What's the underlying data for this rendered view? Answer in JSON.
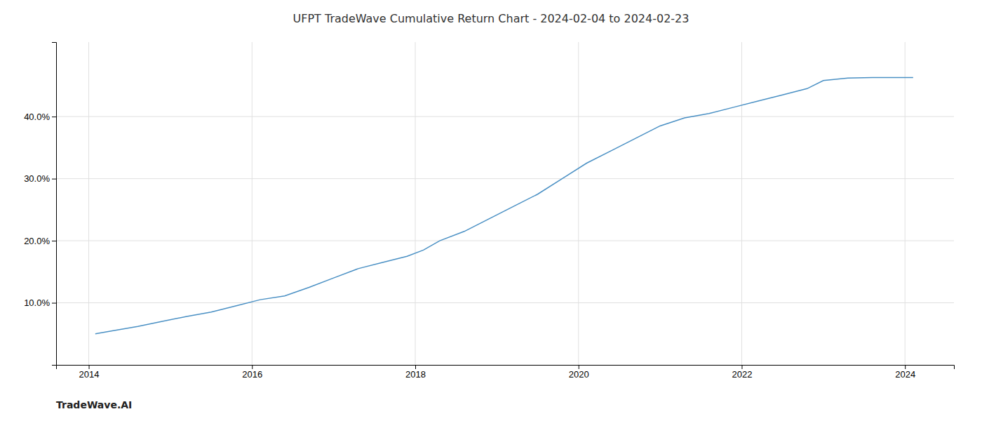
{
  "chart_data": {
    "type": "line",
    "title": "UFPT TradeWave Cumulative Return Chart - 2024-02-04 to 2024-02-23",
    "annotations": [
      "TradeWave.AI"
    ],
    "color": "#4a90c4",
    "x": [
      2014.08,
      2014.3,
      2014.6,
      2014.9,
      2015.2,
      2015.5,
      2015.8,
      2016.1,
      2016.4,
      2016.7,
      2017.0,
      2017.3,
      2017.6,
      2017.9,
      2018.1,
      2018.3,
      2018.6,
      2018.9,
      2019.2,
      2019.5,
      2019.8,
      2020.1,
      2020.4,
      2020.7,
      2021.0,
      2021.3,
      2021.6,
      2021.9,
      2022.2,
      2022.5,
      2022.8,
      2023.0,
      2023.3,
      2023.6,
      2024.1
    ],
    "values": [
      5.0,
      5.5,
      6.2,
      7.0,
      7.8,
      8.5,
      9.5,
      10.5,
      11.1,
      12.5,
      14.0,
      15.5,
      16.5,
      17.5,
      18.5,
      20.0,
      21.5,
      23.5,
      25.5,
      27.5,
      30.0,
      32.5,
      34.5,
      36.5,
      38.5,
      39.8,
      40.5,
      41.5,
      42.5,
      43.5,
      44.5,
      45.8,
      46.2,
      46.3,
      46.3
    ],
    "xlim": [
      2013.6,
      2024.6
    ],
    "ylim": [
      0,
      52
    ],
    "xticks": [
      2014,
      2016,
      2018,
      2020,
      2022,
      2024
    ],
    "yticks": [
      {
        "value": 10.0,
        "label": "10.0%"
      },
      {
        "value": 20.0,
        "label": "20.0%"
      },
      {
        "value": 30.0,
        "label": "30.0%"
      },
      {
        "value": 40.0,
        "label": "40.0%"
      }
    ],
    "grid": true
  }
}
